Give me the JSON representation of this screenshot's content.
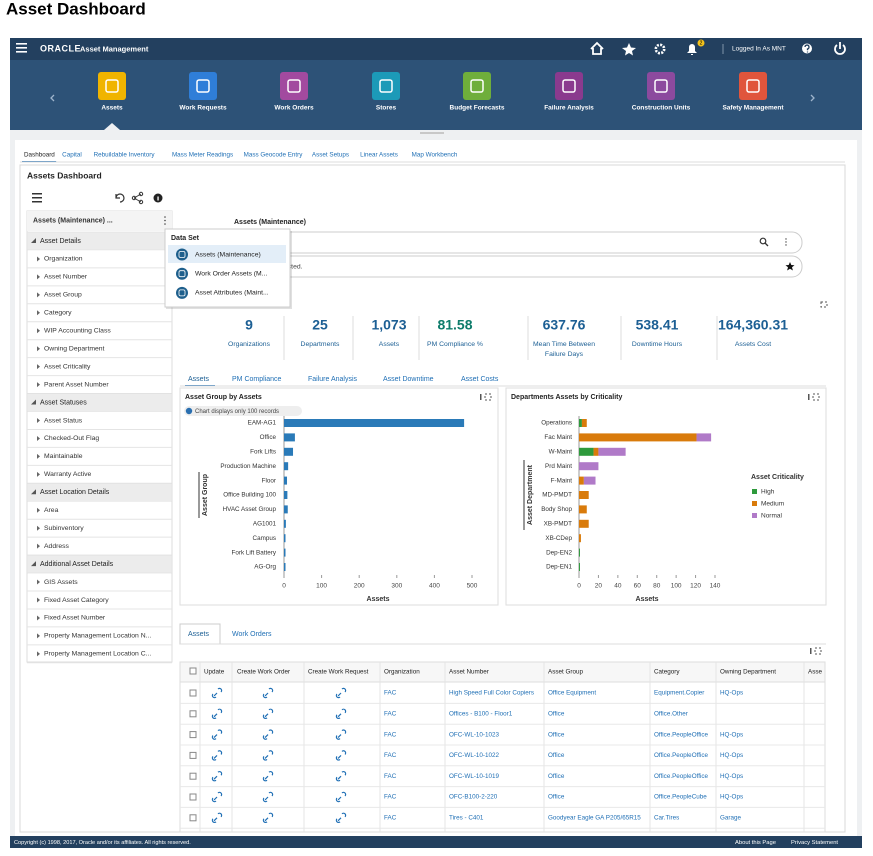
{
  "page_title": "Asset Dashboard",
  "header": {
    "brand": "ORACLE",
    "product": "Asset Management",
    "badge": "2",
    "user": "Logged In As MNT"
  },
  "nav": [
    "Assets",
    "Work Requests",
    "Work Orders",
    "Stores",
    "Budget Forecasts",
    "Failure Analysis",
    "Construction Units",
    "Safety Management"
  ],
  "tabs": [
    "Dashboard",
    "Capital",
    "Rebuildable Inventory",
    "Mass Meter Readings",
    "Mass Geocode Entry",
    "Asset Setups",
    "Linear Assets",
    "Map Workbench"
  ],
  "panel_title": "Assets Dashboard",
  "sidebar": {
    "dataset": "Assets (Maintenance) ...",
    "groups": [
      {
        "name": "Asset Details",
        "items": [
          "Organization",
          "Asset Number",
          "Asset Group",
          "Category",
          "WIP Accounting Class",
          "Owning Department",
          "Asset Criticality",
          "Parent Asset Number"
        ]
      },
      {
        "name": "Asset Statuses",
        "items": [
          "Asset Status",
          "Checked-Out Flag",
          "Maintainable",
          "Warranty Active"
        ]
      },
      {
        "name": "Asset Location Details",
        "items": [
          "Area",
          "Subinventory",
          "Address"
        ]
      },
      {
        "name": "Additional Asset Details",
        "items": [
          "GIS Assets",
          "Fixed Asset Category",
          "Fixed Asset Number",
          "Property Management Location N...",
          "Property Management Location C..."
        ]
      }
    ]
  },
  "popup": {
    "title": "Data Set",
    "items": [
      "Assets (Maintenance)",
      "Work Order Assets (M...",
      "Asset Attributes (Maint..."
    ]
  },
  "search": {
    "label": "Assets (Maintenance)",
    "filter_text": "ected."
  },
  "metrics": [
    {
      "value": "9",
      "label": [
        "Organizations"
      ]
    },
    {
      "value": "25",
      "label": [
        "Departments"
      ]
    },
    {
      "value": "1,073",
      "label": [
        "Assets"
      ]
    },
    {
      "value": "81.58",
      "label": [
        "PM Compliance %"
      ]
    },
    {
      "value": "637.76",
      "label": [
        "Mean Time Between",
        "Failure Days"
      ]
    },
    {
      "value": "538.41",
      "label": [
        "Downtime Hours"
      ]
    },
    {
      "value": "164,360.31",
      "label": [
        "Assets Cost"
      ]
    }
  ],
  "chart_tabs": [
    "Assets",
    "PM Compliance",
    "Failure Analysis",
    "Asset Downtime",
    "Asset Costs"
  ],
  "charts": [
    {
      "type": "bar",
      "title": "Asset Group by Assets",
      "note": "Chart displays only 100 records",
      "x_label": "Assets",
      "y_label": "Asset Group",
      "color": "#2a7ab8",
      "categories": [
        "EAM-AG1",
        "Office",
        "Fork Lifts",
        "Production Machine",
        "Floor",
        "Office Building 100",
        "HVAC Asset Group",
        "AG1001",
        "Campus",
        "Fork Lift Battery",
        "AG-Org"
      ],
      "values": [
        479,
        29,
        24,
        11,
        8,
        9,
        10,
        5,
        4,
        4,
        4
      ],
      "xlim": [
        0,
        500
      ],
      "xticks": [
        0,
        100,
        200,
        300,
        400,
        500
      ]
    },
    {
      "type": "stacked_bar",
      "title": "Departments Assets by Criticality",
      "x_label": "Assets",
      "y_label": "Asset Department",
      "legend_title": "Asset Criticality",
      "categories": [
        "Operations",
        "Fac Maint",
        "W-Maint",
        "Prd Maint",
        "F-Maint",
        "MD-PMDT",
        "Body Shop",
        "XB-PMDT",
        "XB-CDep",
        "Dep-EN2",
        "Dep-EN1"
      ],
      "series": [
        {
          "name": "High",
          "color": "#2e9a3c",
          "values": [
            3,
            0,
            15,
            0,
            0,
            0,
            0,
            0,
            0,
            1,
            1
          ]
        },
        {
          "name": "Medium",
          "color": "#d97b0b",
          "values": [
            5,
            121,
            5,
            0,
            5,
            10,
            8,
            10,
            2,
            0,
            0
          ]
        },
        {
          "name": "Normal",
          "color": "#b07ac8",
          "values": [
            0,
            15,
            28,
            20,
            12,
            0,
            0,
            0,
            0,
            0,
            0
          ]
        }
      ],
      "xlim": [
        0,
        140
      ],
      "xticks": [
        0,
        20,
        40,
        60,
        80,
        100,
        120,
        140
      ]
    }
  ],
  "bottom_tabs": [
    "Assets",
    "Work Orders"
  ],
  "table": {
    "columns": [
      "Update",
      "Create Work Order",
      "Create Work Request",
      "Organization",
      "Asset Number",
      "Asset Group",
      "Category",
      "Owning Department",
      "Asse"
    ],
    "rows": [
      [
        "FAC",
        "High Speed Full Color Copiers",
        "Office Equipment",
        "Equipment.Copier",
        "HQ-Ops"
      ],
      [
        "FAC",
        "Offices - B100 - Floor1",
        "Office",
        "Office.Other",
        null
      ],
      [
        "FAC",
        "OFC-WL-10-1023",
        "Office",
        "Office.PeopleOffice",
        "HQ-Ops"
      ],
      [
        "FAC",
        "OFC-WL-10-1022",
        "Office",
        "Office.PeopleOffice",
        "HQ-Ops"
      ],
      [
        "FAC",
        "OFC-WL-10-1019",
        "Office",
        "Office.PeopleOffice",
        "HQ-Ops"
      ],
      [
        "FAC",
        "OFC-B100-2-220",
        "Office",
        "Office.PeopleCube",
        "HQ-Ops"
      ],
      [
        "FAC",
        "Tires - C401",
        "Goodyear Eagle GA P205/65R15",
        "Car.Tires",
        "Garage"
      ]
    ]
  },
  "footer": {
    "copyright": "Copyright (c) 1998, 2017, Oracle and/or its affiliates. All rights reserved.",
    "links": [
      "About this Page",
      "Privacy Statement"
    ]
  }
}
